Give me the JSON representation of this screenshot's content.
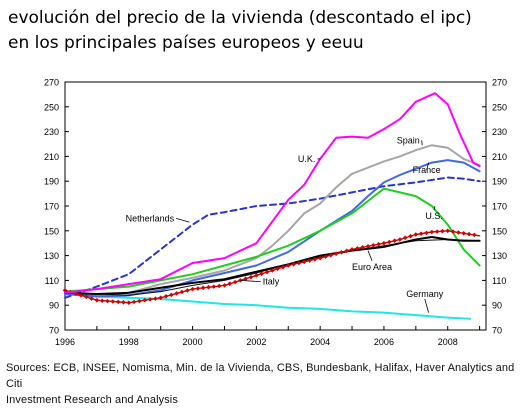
{
  "title_line1": "evolución del precio de la vivienda (descontado el ipc)",
  "title_line2": "en los principales países europeos y eeuu",
  "source_line1": "Sources: ECB, INSEE, Nomisma, Min. de la Vivienda, CBS, Bundesbank, Halifax, Haver Analytics and Citi",
  "source_line2": "Investment Research and Analysis",
  "chart_data": {
    "type": "line",
    "title": "",
    "xlabel": "",
    "ylabel": "",
    "xlim": [
      1996,
      2009.2
    ],
    "ylim": [
      70,
      270
    ],
    "x_ticks": [
      "1996",
      "1998",
      "2000",
      "2002",
      "2004",
      "2006",
      "2008"
    ],
    "y_ticks": [
      "70",
      "90",
      "110",
      "130",
      "150",
      "170",
      "190",
      "210",
      "230",
      "250",
      "270"
    ],
    "y_ticks_right": [
      "70",
      "90",
      "110",
      "130",
      "150",
      "170",
      "190",
      "210",
      "230",
      "250",
      "270"
    ],
    "grid": false,
    "series": [
      {
        "name": "U.K.",
        "color": "#ff00ff",
        "style": "solid",
        "points": [
          [
            1996,
            100
          ],
          [
            1997,
            103
          ],
          [
            1998,
            107
          ],
          [
            1999,
            111
          ],
          [
            2000,
            124
          ],
          [
            2000.5,
            126
          ],
          [
            2001,
            128
          ],
          [
            2002,
            140
          ],
          [
            2003,
            175
          ],
          [
            2003.5,
            187
          ],
          [
            2004,
            208
          ],
          [
            2004.5,
            225
          ],
          [
            2005,
            226
          ],
          [
            2005.5,
            225
          ],
          [
            2006,
            232
          ],
          [
            2006.5,
            240
          ],
          [
            2007,
            254
          ],
          [
            2007.6,
            261
          ],
          [
            2008,
            252
          ],
          [
            2008.4,
            227
          ],
          [
            2008.8,
            205
          ],
          [
            2009,
            202
          ]
        ]
      },
      {
        "name": "Spain",
        "color": "#a6a6a6",
        "style": "solid",
        "points": [
          [
            1996,
            99
          ],
          [
            1997,
            98
          ],
          [
            1998,
            100
          ],
          [
            1999,
            107
          ],
          [
            2000,
            112
          ],
          [
            2001,
            118
          ],
          [
            2002,
            128
          ],
          [
            2002.5,
            138
          ],
          [
            2003,
            150
          ],
          [
            2003.5,
            164
          ],
          [
            2004,
            172
          ],
          [
            2004.5,
            185
          ],
          [
            2005,
            196
          ],
          [
            2006,
            206
          ],
          [
            2006.5,
            210
          ],
          [
            2007,
            215
          ],
          [
            2007.5,
            219
          ],
          [
            2008,
            217
          ],
          [
            2008.5,
            208
          ],
          [
            2009,
            203
          ]
        ]
      },
      {
        "name": "France",
        "color": "#4169e1",
        "style": "solid",
        "points": [
          [
            1996,
            99
          ],
          [
            1997,
            97
          ],
          [
            1998,
            98
          ],
          [
            1999,
            102
          ],
          [
            2000,
            110
          ],
          [
            2001,
            116
          ],
          [
            2002,
            122
          ],
          [
            2003,
            133
          ],
          [
            2004,
            150
          ],
          [
            2005,
            166
          ],
          [
            2005.5,
            178
          ],
          [
            2006,
            189
          ],
          [
            2006.5,
            195
          ],
          [
            2007,
            200
          ],
          [
            2007.5,
            205
          ],
          [
            2008,
            207
          ],
          [
            2008.5,
            205
          ],
          [
            2009,
            198
          ]
        ]
      },
      {
        "name": "Netherlands",
        "color": "#2a36c9",
        "style": "dashed",
        "points": [
          [
            1996,
            96
          ],
          [
            1997,
            105
          ],
          [
            1998,
            115
          ],
          [
            1999,
            135
          ],
          [
            2000,
            155
          ],
          [
            2000.5,
            163
          ],
          [
            2001,
            165
          ],
          [
            2002,
            170
          ],
          [
            2003,
            172
          ],
          [
            2004,
            176
          ],
          [
            2005,
            181
          ],
          [
            2006,
            186
          ],
          [
            2007,
            189
          ],
          [
            2007.5,
            191
          ],
          [
            2008,
            193
          ],
          [
            2008.5,
            192
          ],
          [
            2009,
            190
          ]
        ]
      },
      {
        "name": "U.S.",
        "color": "#22cc22",
        "style": "solid",
        "points": [
          [
            1996,
            101
          ],
          [
            1997,
            103
          ],
          [
            1998,
            105
          ],
          [
            1999,
            110
          ],
          [
            2000,
            115
          ],
          [
            2001,
            122
          ],
          [
            2002,
            129
          ],
          [
            2003,
            138
          ],
          [
            2004,
            150
          ],
          [
            2005,
            164
          ],
          [
            2005.5,
            174
          ],
          [
            2006,
            184
          ],
          [
            2006.5,
            181
          ],
          [
            2007,
            178
          ],
          [
            2007.5,
            170
          ],
          [
            2008,
            155
          ],
          [
            2008.5,
            135
          ],
          [
            2009,
            122
          ]
        ]
      },
      {
        "name": "Euro Area",
        "color": "#000000",
        "style": "solid",
        "points": [
          [
            1996,
            100
          ],
          [
            1997,
            99
          ],
          [
            1998,
            100
          ],
          [
            1999,
            104
          ],
          [
            2000,
            108
          ],
          [
            2001,
            111
          ],
          [
            2002,
            117
          ],
          [
            2003,
            123
          ],
          [
            2004,
            130
          ],
          [
            2005,
            134
          ],
          [
            2006,
            137
          ],
          [
            2006.5,
            140
          ],
          [
            2007,
            143
          ],
          [
            2007.5,
            145
          ],
          [
            2008,
            143
          ],
          [
            2008.5,
            142
          ],
          [
            2009,
            142
          ]
        ]
      },
      {
        "name": "",
        "color": "#cc0000",
        "style": "markers",
        "points": [
          [
            1996,
            102
          ],
          [
            1997,
            94
          ],
          [
            1998,
            92
          ],
          [
            1999,
            96
          ],
          [
            2000,
            103
          ],
          [
            2001,
            106
          ],
          [
            2002,
            114
          ],
          [
            2003,
            122
          ],
          [
            2004,
            128
          ],
          [
            2005,
            135
          ],
          [
            2006,
            140
          ],
          [
            2006.5,
            143
          ],
          [
            2007,
            147
          ],
          [
            2007.5,
            149
          ],
          [
            2008,
            150
          ],
          [
            2008.5,
            148
          ],
          [
            2009,
            146
          ]
        ]
      },
      {
        "name": "Italy",
        "color": "#111111",
        "style": "thin",
        "points": [
          [
            1996,
            101
          ],
          [
            1997,
            99
          ],
          [
            1998,
            98
          ],
          [
            1999,
            101
          ],
          [
            2000,
            106
          ],
          [
            2001,
            110
          ],
          [
            2002,
            116
          ],
          [
            2003,
            123
          ],
          [
            2004,
            129
          ],
          [
            2005,
            134
          ],
          [
            2006,
            138
          ],
          [
            2007,
            142
          ],
          [
            2008,
            143
          ],
          [
            2009,
            142
          ]
        ]
      },
      {
        "name": "Germany",
        "color": "#22e5e5",
        "style": "solid",
        "points": [
          [
            1996,
            99
          ],
          [
            1997,
            97
          ],
          [
            1998,
            96
          ],
          [
            1999,
            95
          ],
          [
            2000,
            93
          ],
          [
            2001,
            91
          ],
          [
            2002,
            90
          ],
          [
            2003,
            88
          ],
          [
            2004,
            87
          ],
          [
            2005,
            85
          ],
          [
            2006,
            84
          ],
          [
            2007,
            82
          ],
          [
            2008,
            80
          ],
          [
            2008.7,
            79
          ]
        ]
      }
    ],
    "annotations": [
      {
        "text": "U.K.",
        "x": 2003.3,
        "y": 208,
        "anchor_x": 2004.0,
        "anchor_y": 208
      },
      {
        "text": "Spain",
        "x": 2006.4,
        "y": 223,
        "anchor_x": 2007.2,
        "anchor_y": 219
      },
      {
        "text": "France",
        "x": 2006.9,
        "y": 199,
        "anchor_x": 2007.4,
        "anchor_y": 205
      },
      {
        "text": "Netherlands",
        "x": 1997.9,
        "y": 160,
        "anchor_x": 1999.9,
        "anchor_y": 157
      },
      {
        "text": "U.S.",
        "x": 2007.3,
        "y": 162,
        "anchor_x": 2007.6,
        "anchor_y": 170
      },
      {
        "text": "Euro Area",
        "x": 2005.0,
        "y": 121,
        "anchor_x": 2005.5,
        "anchor_y": 134
      },
      {
        "text": "Italy",
        "x": 2002.2,
        "y": 109,
        "anchor_x": 2001.5,
        "anchor_y": 110
      },
      {
        "text": "Germany",
        "x": 2006.7,
        "y": 99,
        "anchor_x": 2007.4,
        "anchor_y": 84
      }
    ]
  }
}
